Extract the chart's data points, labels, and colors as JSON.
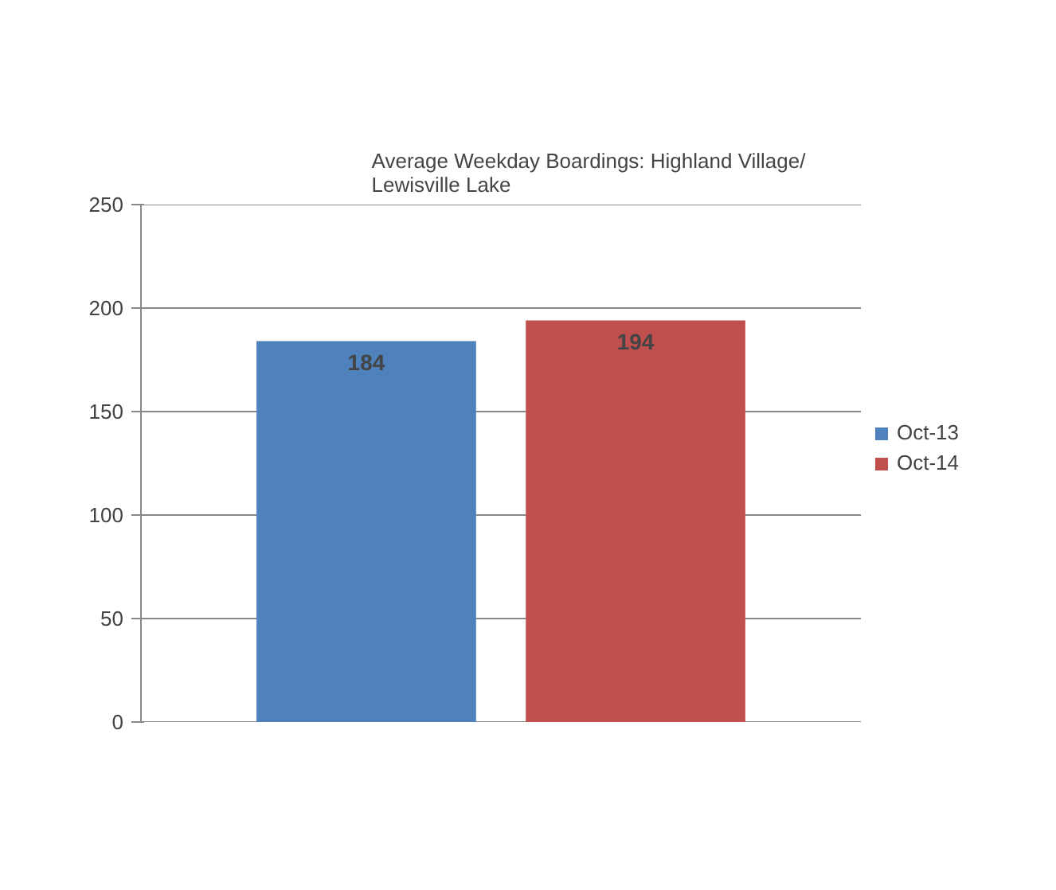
{
  "chart_data": {
    "type": "bar",
    "title": "Average Weekday Boardings: Highland Village/\nLewisville Lake",
    "categories": [
      null
    ],
    "series": [
      {
        "name": "Oct-13",
        "color": "#4f81bd",
        "values": [
          184
        ]
      },
      {
        "name": "Oct-14",
        "color": "#c0504d",
        "values": [
          194
        ]
      }
    ],
    "ylim": [
      0,
      250
    ],
    "yticks": [
      0,
      50,
      100,
      150,
      200,
      250
    ],
    "grid": "y",
    "legend": "right",
    "data_labels": true
  }
}
